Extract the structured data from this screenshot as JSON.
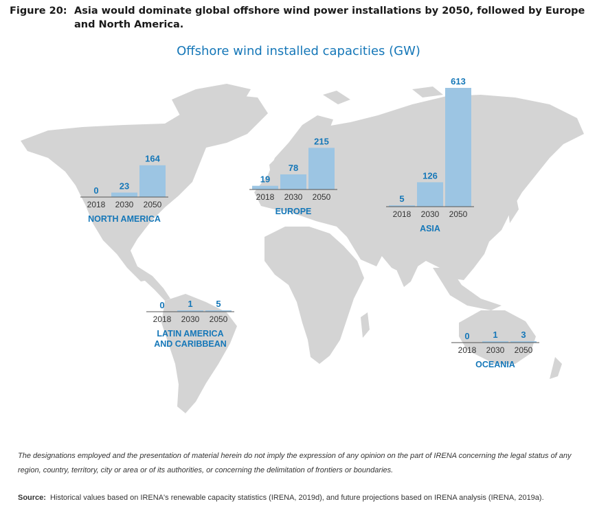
{
  "figure": {
    "label": "Figure 20:",
    "caption": "Asia would dominate global offshore wind power installations by 2050, followed by Europe and North America."
  },
  "colors": {
    "title": "#1577b8",
    "region_label": "#1577b8",
    "value_label": "#1577b8",
    "bar": "#9cc5e3",
    "map_land": "#d4d4d4",
    "axis_line": "#555555"
  },
  "chart_data": {
    "type": "bar",
    "title": "Offshore wind installed capacities (GW)",
    "unit": "GW",
    "categories": [
      "2018",
      "2030",
      "2050"
    ],
    "regions": [
      {
        "name": "NORTH AMERICA",
        "values": [
          0,
          23,
          164
        ]
      },
      {
        "name": "EUROPE",
        "values": [
          19,
          78,
          215
        ]
      },
      {
        "name": "ASIA",
        "values": [
          5,
          126,
          613
        ]
      },
      {
        "name": "LATIN AMERICA AND CARIBBEAN",
        "name_lines": [
          "LATIN AMERICA",
          "AND CARIBBEAN"
        ],
        "values": [
          0,
          1,
          5
        ]
      },
      {
        "name": "OCEANIA",
        "values": [
          0,
          1,
          3
        ]
      }
    ]
  },
  "footer": {
    "disclaimer": "The designations employed and the presentation of material herein do not imply the expression of any opinion on the part of IRENA concerning the legal status of any region, country, territory, city or area or of its authorities, or concerning the delimitation of frontiers or boundaries.",
    "source_label": "Source:",
    "source_text": "Historical values based on IRENA's renewable capacity statistics (IRENA, 2019d), and future projections based on IRENA analysis (IRENA, 2019a)."
  }
}
